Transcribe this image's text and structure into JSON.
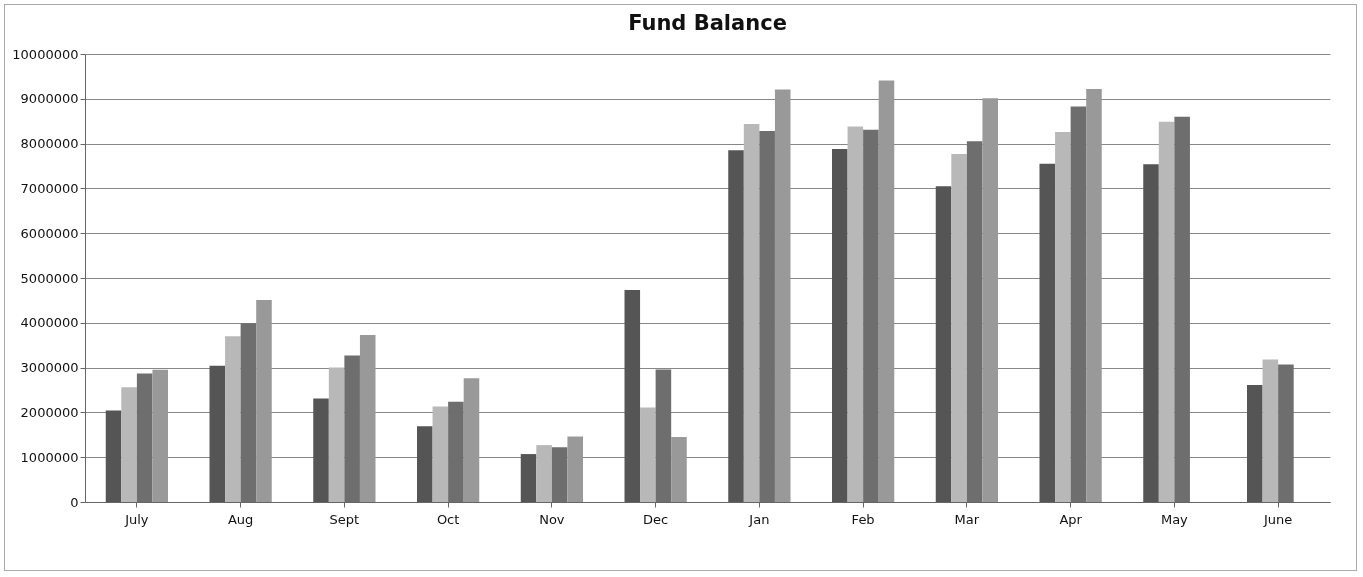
{
  "chart_data": {
    "type": "bar",
    "title": "Fund Balance",
    "categories": [
      "July",
      "Aug",
      "Sept",
      "Oct",
      "Nov",
      "Dec",
      "Jan",
      "Feb",
      "Mar",
      "Apr",
      "May",
      "June"
    ],
    "series": [
      {
        "color": "#555555",
        "values": [
          2040000,
          3040000,
          2310000,
          1690000,
          1070000,
          4730000,
          7850000,
          7880000,
          7050000,
          7550000,
          7540000,
          2610000
        ]
      },
      {
        "color": "#b8b8b8",
        "values": [
          2560000,
          3700000,
          3000000,
          2130000,
          1270000,
          2110000,
          8440000,
          8380000,
          7770000,
          8260000,
          8490000,
          3180000
        ]
      },
      {
        "color": "#6e6e6e",
        "values": [
          2870000,
          3990000,
          3270000,
          2240000,
          1220000,
          2960000,
          8280000,
          8310000,
          8050000,
          8830000,
          8600000,
          3070000
        ]
      },
      {
        "color": "#999999",
        "values": [
          2950000,
          4510000,
          3730000,
          2760000,
          1460000,
          1450000,
          9210000,
          9410000,
          9010000,
          9220000,
          null,
          null
        ]
      }
    ],
    "ylim": [
      0,
      10000000
    ],
    "yticks": [
      0,
      1000000,
      2000000,
      3000000,
      4000000,
      5000000,
      6000000,
      7000000,
      8000000,
      9000000,
      10000000
    ],
    "grid": "y"
  }
}
